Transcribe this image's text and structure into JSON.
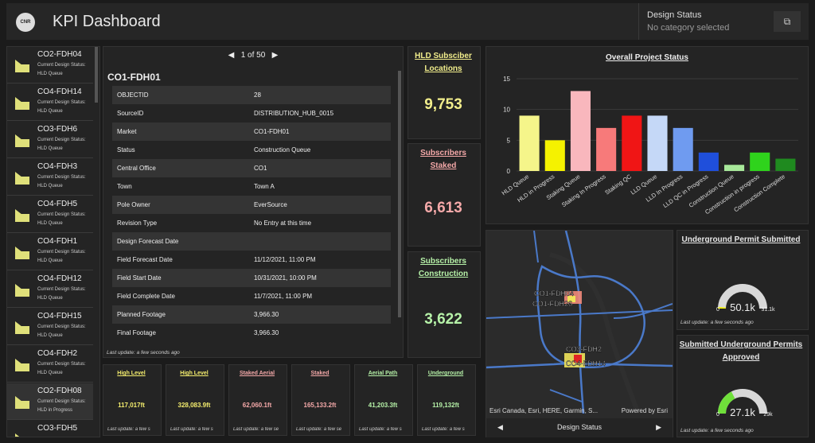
{
  "header": {
    "title": "KPI Dashboard",
    "logo_text": "CNR",
    "design_status_label": "Design Status",
    "design_status_value": "No category selected",
    "open_icon": "external-link-icon"
  },
  "list": [
    {
      "name": "CO2-FDH04",
      "l1": "Current Design Status:",
      "l2": "HLD Queue"
    },
    {
      "name": "CO4-FDH14",
      "l1": "Current Design Status:",
      "l2": "HLD Queue"
    },
    {
      "name": "CO3-FDH6",
      "l1": "Current Design Status:",
      "l2": "HLD Queue"
    },
    {
      "name": "CO4-FDH3",
      "l1": "Current Design Status:",
      "l2": "HLD Queue"
    },
    {
      "name": "CO4-FDH5",
      "l1": "Current Design Status:",
      "l2": "HLD Queue"
    },
    {
      "name": "CO4-FDH1",
      "l1": "Current Design Status:",
      "l2": "HLD Queue"
    },
    {
      "name": "CO4-FDH12",
      "l1": "Current Design Status:",
      "l2": "HLD Queue"
    },
    {
      "name": "CO4-FDH15",
      "l1": "Current Design Status:",
      "l2": "HLD Queue"
    },
    {
      "name": "CO4-FDH2",
      "l1": "Current Design Status:",
      "l2": "HLD Queue"
    },
    {
      "name": "CO2-FDH08",
      "l1": "Current Design Status:",
      "l2": "HLD in Progress"
    },
    {
      "name": "CO3-FDH5",
      "l1": "",
      "l2": ""
    }
  ],
  "details": {
    "pager": "1 of 50",
    "record_title": "CO1-FDH01",
    "rows": [
      {
        "k": "OBJECTID",
        "v": "28"
      },
      {
        "k": "SourceID",
        "v": "DISTRIBUTION_HUB_0015"
      },
      {
        "k": "Market",
        "v": "CO1-FDH01"
      },
      {
        "k": "Status",
        "v": "Construction Queue"
      },
      {
        "k": "Central Office",
        "v": "CO1"
      },
      {
        "k": "Town",
        "v": "Town A"
      },
      {
        "k": "Pole Owner",
        "v": "EverSource"
      },
      {
        "k": "Revision Type",
        "v": "No Entry at this time"
      },
      {
        "k": "Design Forecast Date",
        "v": ""
      },
      {
        "k": "Field Forecast Date",
        "v": "11/12/2021, 11:00 PM"
      },
      {
        "k": "Field Start Date",
        "v": "10/31/2021, 10:00 PM"
      },
      {
        "k": "Field Complete Date",
        "v": "11/7/2021, 11:00 PM"
      },
      {
        "k": "Planned Footage",
        "v": "3,966.30"
      },
      {
        "k": "Final Footage",
        "v": "3,966.30"
      }
    ],
    "last_update": "Last update: a few seconds ago"
  },
  "indicators": [
    {
      "title": "HLD Subsciber Locations",
      "value": "9,753",
      "color": "#f2ee8c"
    },
    {
      "title": "Subscribers Staked",
      "value": "6,613",
      "color": "#f5a9a9"
    },
    {
      "title": "Subscribers Construction",
      "value": "3,622",
      "color": "#b6f2a8"
    }
  ],
  "minis": [
    {
      "title": "High Level",
      "value": "117,017ft",
      "color": "#f5ee6e",
      "lu": "Last update: a few s"
    },
    {
      "title": "High Level",
      "value": "328,083.9ft",
      "color": "#f5ee6e",
      "lu": "Last update: a few s"
    },
    {
      "title": "Staked Aerial",
      "value": "62,060.1ft",
      "color": "#f5a9a9",
      "lu": "Last update: a few se"
    },
    {
      "title": "Staked",
      "value": "165,133.2ft",
      "color": "#f5a9a9",
      "lu": "Last update: a few se"
    },
    {
      "title": "Aerial Path",
      "value": "41,203.3ft",
      "color": "#b6f2a8",
      "lu": "Last update: a few s"
    },
    {
      "title": "Underground",
      "value": "119,132ft",
      "color": "#b6f2a8",
      "lu": "Last update: a few s"
    }
  ],
  "chart_data": {
    "type": "bar",
    "title": "Overall Project Status",
    "ylim": [
      0,
      15
    ],
    "yticks": [
      0,
      5,
      10,
      15
    ],
    "categories": [
      "HLD Queue",
      "HLD in Progress",
      "Staking Queue",
      "Staking In Progress",
      "Staking QC",
      "LLD Queue",
      "LLD In Progress",
      "LLD QC in Progress",
      "Construction Queue",
      "Construction in progress",
      "Construction Complete"
    ],
    "values": [
      9,
      5,
      13,
      7,
      9,
      9,
      7,
      3,
      1,
      3,
      2
    ],
    "colors": [
      "#f5f58a",
      "#f5f200",
      "#f9b7bd",
      "#f77a7a",
      "#f01515",
      "#c5d8f7",
      "#6f9bf0",
      "#1f4fdb",
      "#a8e89a",
      "#2fd31c",
      "#1f8a1f"
    ]
  },
  "map": {
    "labels": [
      "CO1-FDH04",
      "CO1-FDH26",
      "CO3-FDH2",
      "CO4-FDH14"
    ],
    "attribution": "Esri Canada, Esri, HERE, Garmin, S...",
    "powered": "Powered by Esri",
    "nav_label": "Design Status"
  },
  "gauges": [
    {
      "title": "Underground Permit Submitted",
      "value": "0",
      "value2": "50.1k",
      "max": "31.1k",
      "fraction": 0.02,
      "color": "#f0ef00",
      "lu": "Last update: a few seconds ago"
    },
    {
      "title": "Submitted Underground Permits Approved",
      "value": "0",
      "value2": "27.1k",
      "max": "29k",
      "fraction": 0.35,
      "color": "#6fe03a",
      "lu": "Last update: a few seconds ago"
    }
  ]
}
